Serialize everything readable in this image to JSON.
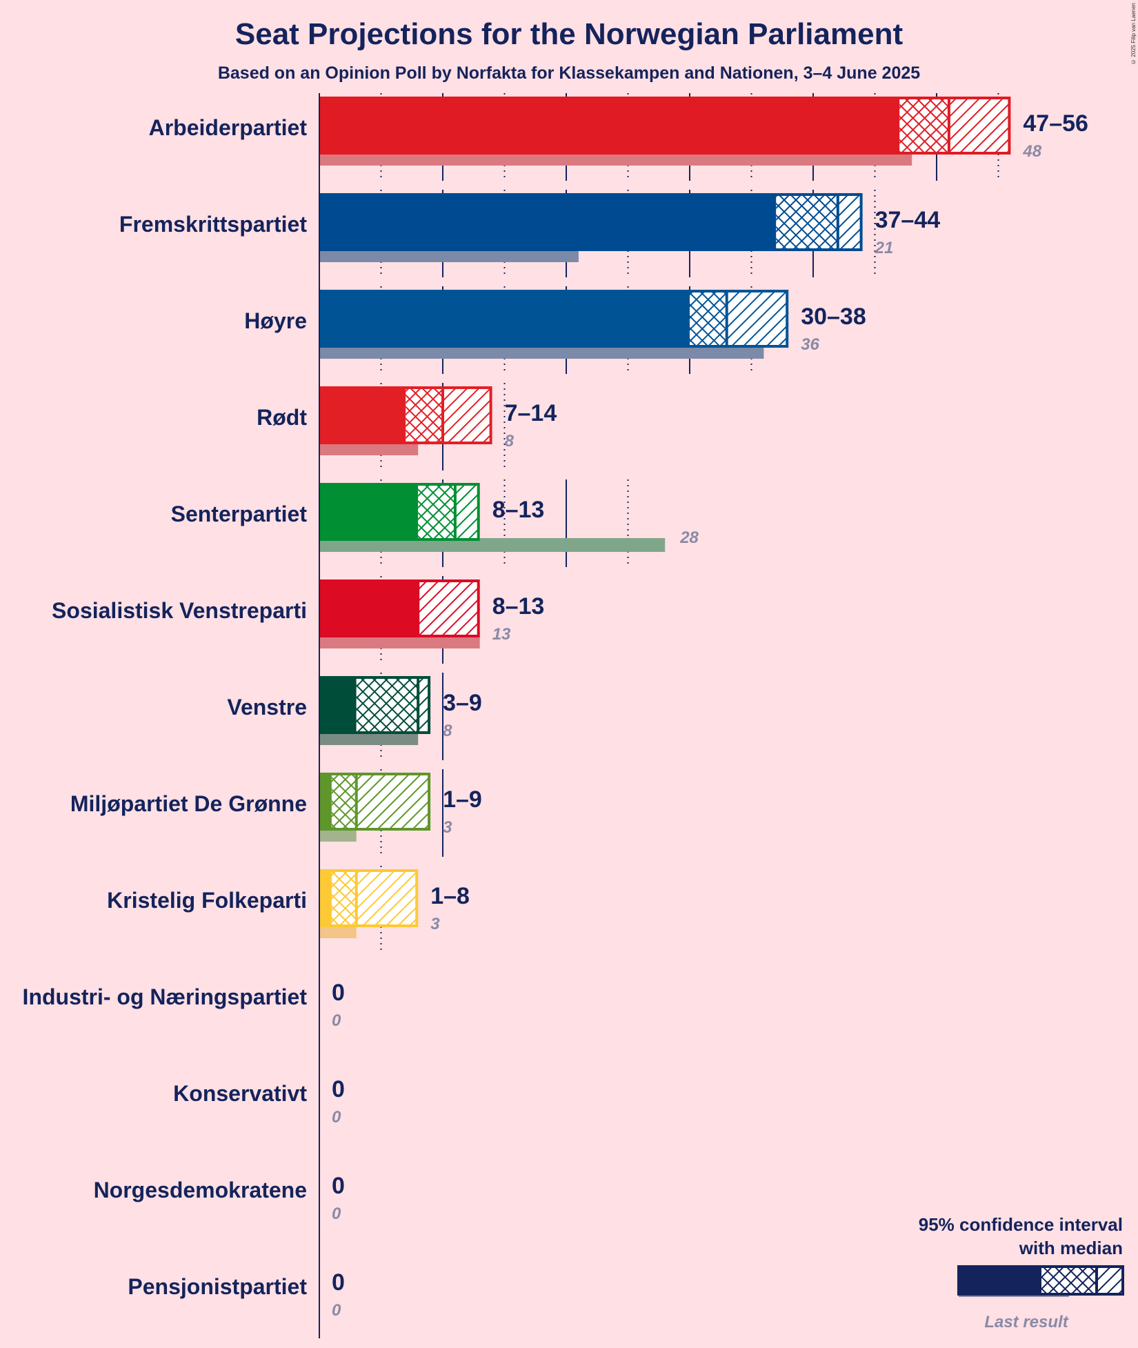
{
  "chart_data": {
    "type": "bar",
    "orientation": "horizontal",
    "title": "Seat Projections for the Norwegian Parliament",
    "subtitle": "Based on an Opinion Poll by Norfakta for Klassekampen and Nationen, 3–4 June 2025",
    "copyright": "© 2025 Filip van Laenen",
    "x_range": [
      0,
      56
    ],
    "grid_major_every": 10,
    "grid_minor_every": 5,
    "legend": {
      "line1": "95% confidence interval",
      "line2": "with median",
      "last_result": "Last result",
      "position": "bottom-right"
    },
    "parties": [
      {
        "name": "Arbeiderpartiet",
        "low": 47,
        "median": 51,
        "high": 56,
        "last": 48,
        "label": "47–56",
        "last_label": "48",
        "color": "#e01b24",
        "last_color": "#da7a80"
      },
      {
        "name": "Fremskrittspartiet",
        "low": 37,
        "median": 42,
        "high": 44,
        "last": 21,
        "label": "37–44",
        "last_label": "21",
        "color": "#004a91",
        "last_color": "#7b8aa8"
      },
      {
        "name": "Høyre",
        "low": 30,
        "median": 33,
        "high": 38,
        "last": 36,
        "label": "30–38",
        "last_label": "36",
        "color": "#005496",
        "last_color": "#7b8aa8"
      },
      {
        "name": "Rødt",
        "low": 7,
        "median": 10,
        "high": 14,
        "last": 8,
        "label": "7–14",
        "last_label": "8",
        "color": "#e31f26",
        "last_color": "#da7a80"
      },
      {
        "name": "Senterpartiet",
        "low": 8,
        "median": 11,
        "high": 13,
        "last": 28,
        "label": "8–13",
        "last_label": "28",
        "color": "#008f33",
        "last_color": "#7fa68a"
      },
      {
        "name": "Sosialistisk Venstreparti",
        "low": 8,
        "median": 8,
        "high": 13,
        "last": 13,
        "label": "8–13",
        "last_label": "13",
        "color": "#dc0a23",
        "last_color": "#da7a80"
      },
      {
        "name": "Venstre",
        "low": 3,
        "median": 8,
        "high": 9,
        "last": 8,
        "label": "3–9",
        "last_label": "8",
        "color": "#004d3a",
        "last_color": "#7a8c84"
      },
      {
        "name": "Miljøpartiet De Grønne",
        "low": 1,
        "median": 3,
        "high": 9,
        "last": 3,
        "label": "1–9",
        "last_label": "3",
        "color": "#5e962b",
        "last_color": "#a3b48d"
      },
      {
        "name": "Kristelig Folkeparti",
        "low": 1,
        "median": 3,
        "high": 8,
        "last": 3,
        "label": "1–8",
        "last_label": "3",
        "color": "#fdc935",
        "last_color": "#f3c586"
      },
      {
        "name": "Industri- og Næringspartiet",
        "low": 0,
        "median": 0,
        "high": 0,
        "last": 0,
        "label": "0",
        "last_label": "0",
        "color": "#14235c",
        "last_color": "#8a8aa6"
      },
      {
        "name": "Konservativt",
        "low": 0,
        "median": 0,
        "high": 0,
        "last": 0,
        "label": "0",
        "last_label": "0",
        "color": "#14235c",
        "last_color": "#8a8aa6"
      },
      {
        "name": "Norgesdemokratene",
        "low": 0,
        "median": 0,
        "high": 0,
        "last": 0,
        "label": "0",
        "last_label": "0",
        "color": "#14235c",
        "last_color": "#8a8aa6"
      },
      {
        "name": "Pensjonistpartiet",
        "low": 0,
        "median": 0,
        "high": 0,
        "last": 0,
        "label": "0",
        "last_label": "0",
        "color": "#14235c",
        "last_color": "#8a8aa6"
      }
    ]
  }
}
